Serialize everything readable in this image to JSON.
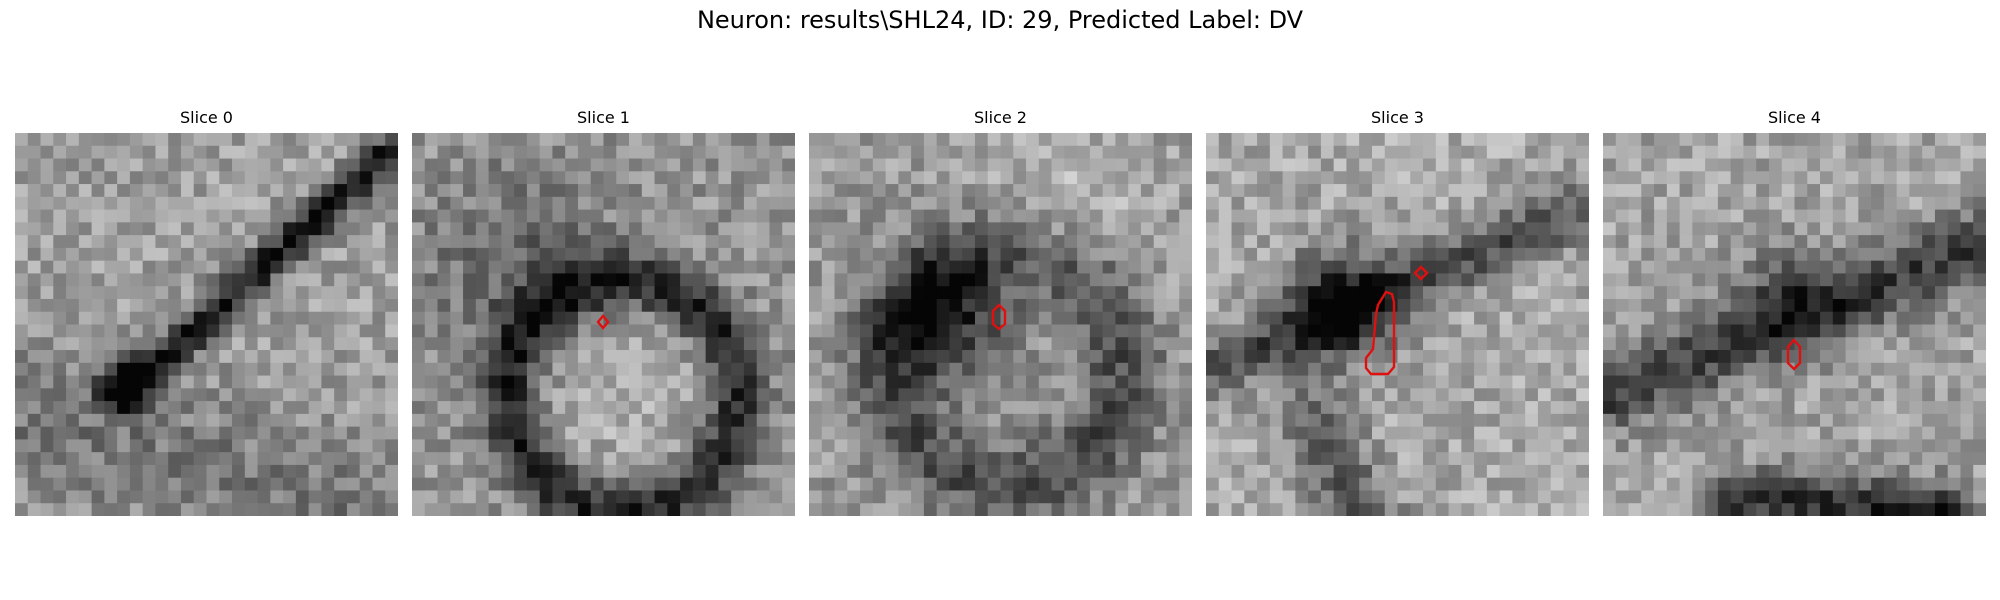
{
  "figure": {
    "title": "Neuron: results\\SHL24, ID: 29, Predicted Label: DV"
  },
  "panels": [
    {
      "title": "Slice 0"
    },
    {
      "title": "Slice 1"
    },
    {
      "title": "Slice 2"
    },
    {
      "title": "Slice 3"
    },
    {
      "title": "Slice 4"
    }
  ],
  "colors": {
    "contour": "#e01010",
    "background": "#ffffff"
  }
}
